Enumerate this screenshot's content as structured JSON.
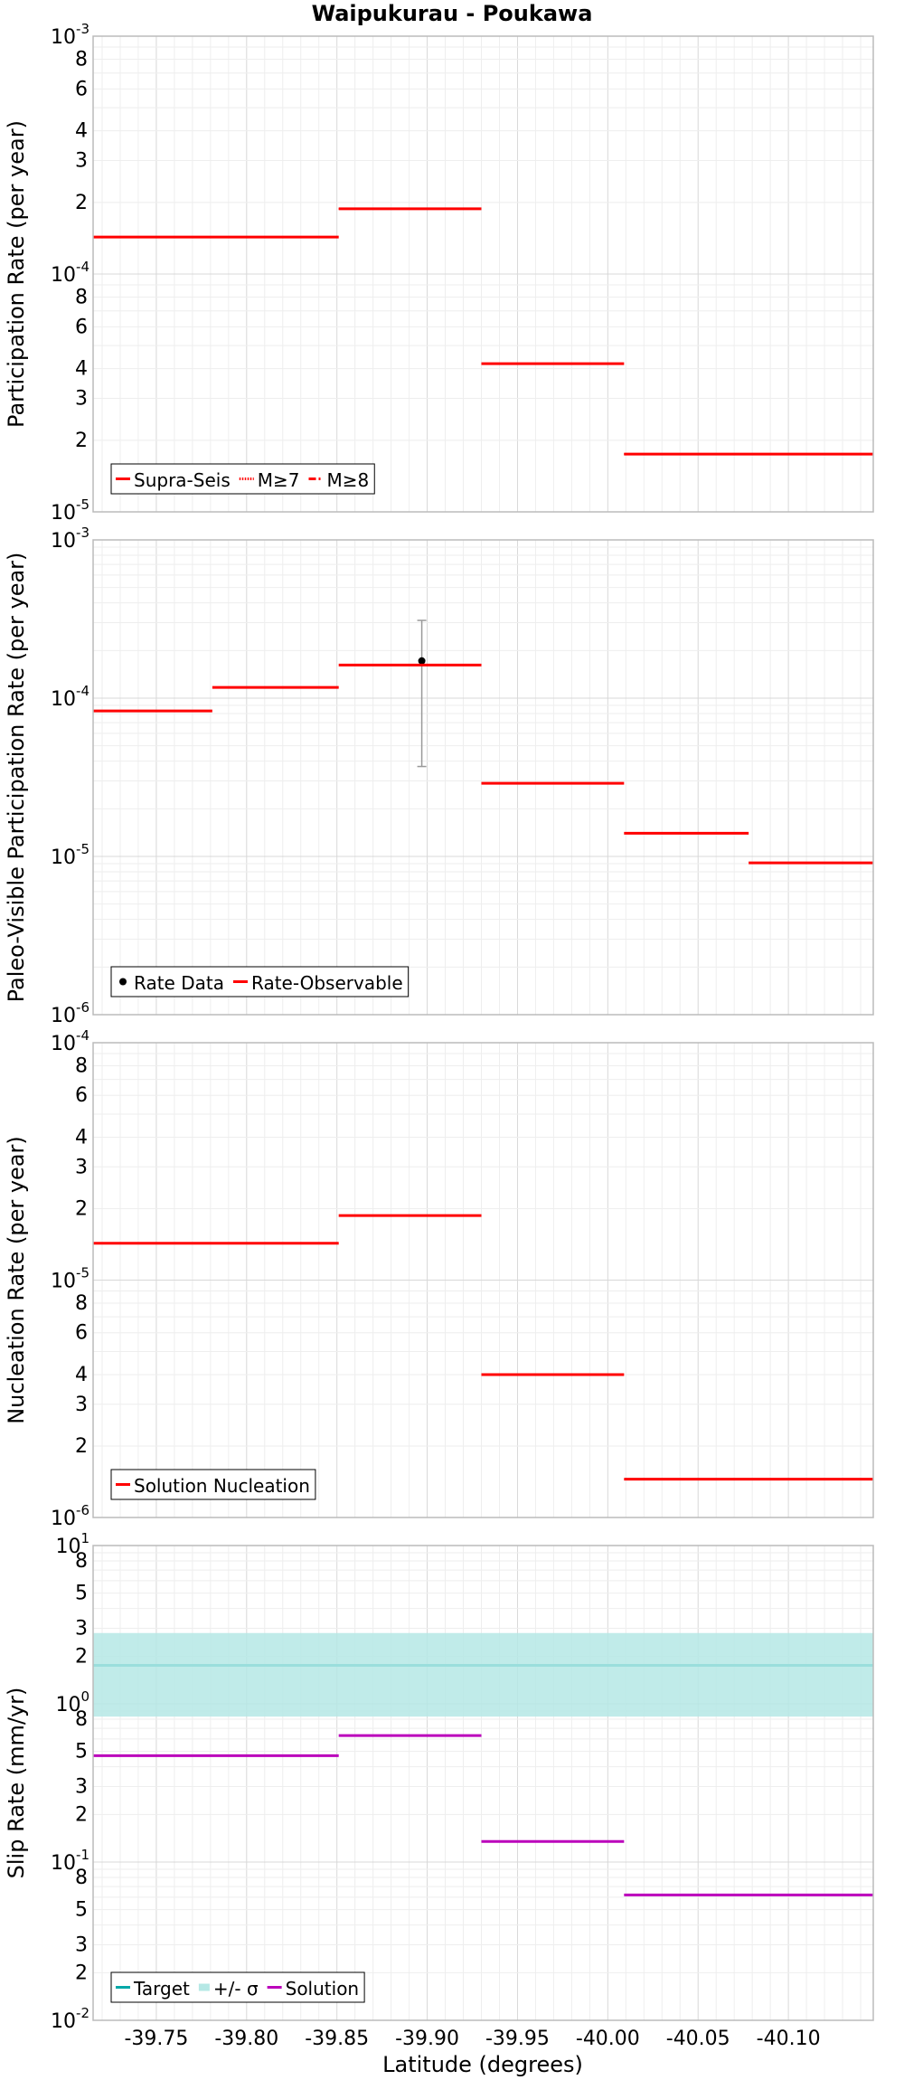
{
  "figure": {
    "title": "Waipukurau - Poukawa",
    "xlabel": "Latitude (degrees)"
  },
  "chart_data": [
    {
      "type": "line",
      "title": "Waipukurau - Poukawa",
      "ylabel": "Participation Rate (per year)",
      "xlabel": "Latitude (degrees)",
      "xscale": "linear, reversed",
      "yscale": "log",
      "xlim": [
        -39.715,
        -40.147
      ],
      "ylim": [
        1e-05,
        0.001
      ],
      "x_ticks": [
        "-39.75",
        "-39.80",
        "-39.85",
        "-39.90",
        "-39.95",
        "-40.00",
        "-40.05",
        "-40.10"
      ],
      "y_major_ticks": [
        {
          "value": 1e-05,
          "base": "10",
          "exp": "-5"
        },
        {
          "value": 0.0001,
          "base": "10",
          "exp": "-4"
        },
        {
          "value": 0.001,
          "base": "10",
          "exp": "-3"
        }
      ],
      "y_minor_labels": [
        "2",
        "3",
        "4",
        "6",
        "8"
      ],
      "grid": true,
      "legend_position": "bottom-left",
      "series": [
        {
          "name": "Supra-Seis",
          "color": "#ff0000",
          "style": "solid",
          "segments": [
            [
              -39.715,
              -39.851,
              0.000143
            ],
            [
              -39.851,
              -39.93,
              0.000188
            ],
            [
              -39.93,
              -40.009,
              4.2e-05
            ],
            [
              -40.009,
              -40.147,
              1.75e-05
            ]
          ]
        },
        {
          "name": "M≥7",
          "color": "#ff0000",
          "style": "dotted",
          "segments": [
            [
              -39.715,
              -39.851,
              0.000143
            ],
            [
              -39.851,
              -39.93,
              0.000188
            ],
            [
              -39.93,
              -40.009,
              4.2e-05
            ],
            [
              -40.009,
              -40.147,
              1.75e-05
            ]
          ]
        },
        {
          "name": "M≥8",
          "color": "#ff0000",
          "style": "dashdot",
          "segments": []
        }
      ]
    },
    {
      "type": "line",
      "ylabel": "Paleo-Visible Participation Rate (per year)",
      "xscale": "linear, reversed",
      "yscale": "log",
      "xlim": [
        -39.715,
        -40.147
      ],
      "ylim": [
        1e-06,
        0.001
      ],
      "y_major_ticks": [
        {
          "value": 1e-06,
          "base": "10",
          "exp": "-6"
        },
        {
          "value": 1e-05,
          "base": "10",
          "exp": "-5"
        },
        {
          "value": 0.0001,
          "base": "10",
          "exp": "-4"
        },
        {
          "value": 0.001,
          "base": "10",
          "exp": "-3"
        }
      ],
      "y_minor_labels": [],
      "grid": true,
      "legend_position": "bottom-left",
      "series": [
        {
          "name": "Rate Data",
          "color": "#000000",
          "kind": "points",
          "points": [
            {
              "x": -39.897,
              "y": 0.000172,
              "ylo": 3.7e-05,
              "yhi": 0.00031
            }
          ]
        },
        {
          "name": "Rate-Observable",
          "color": "#ff0000",
          "style": "solid",
          "segments": [
            [
              -39.715,
              -39.781,
              8.3e-05
            ],
            [
              -39.781,
              -39.851,
              0.000117
            ],
            [
              -39.851,
              -39.93,
              0.000162
            ],
            [
              -39.93,
              -40.009,
              2.9e-05
            ],
            [
              -40.009,
              -40.078,
              1.4e-05
            ],
            [
              -40.078,
              -40.147,
              9.1e-06
            ]
          ]
        }
      ]
    },
    {
      "type": "line",
      "ylabel": "Nucleation Rate (per year)",
      "xscale": "linear, reversed",
      "yscale": "log",
      "xlim": [
        -39.715,
        -40.147
      ],
      "ylim": [
        1e-06,
        0.0001
      ],
      "y_major_ticks": [
        {
          "value": 1e-06,
          "base": "10",
          "exp": "-6"
        },
        {
          "value": 1e-05,
          "base": "10",
          "exp": "-5"
        },
        {
          "value": 0.0001,
          "base": "10",
          "exp": "-4"
        }
      ],
      "y_minor_labels": [
        "2",
        "3",
        "4",
        "6",
        "8"
      ],
      "grid": true,
      "legend_position": "bottom-left",
      "series": [
        {
          "name": "Solution Nucleation",
          "color": "#ff0000",
          "style": "solid",
          "segments": [
            [
              -39.715,
              -39.851,
              1.43e-05
            ],
            [
              -39.851,
              -39.93,
              1.87e-05
            ],
            [
              -39.93,
              -40.009,
              4e-06
            ],
            [
              -40.009,
              -40.147,
              1.45e-06
            ]
          ]
        }
      ]
    },
    {
      "type": "line",
      "ylabel": "Slip Rate (mm/yr)",
      "xlabel": "Latitude (degrees)",
      "xscale": "linear, reversed",
      "yscale": "log",
      "xlim": [
        -39.715,
        -40.147
      ],
      "ylim": [
        0.01,
        10
      ],
      "y_major_ticks": [
        {
          "value": 0.01,
          "base": "10",
          "exp": "-2"
        },
        {
          "value": 0.1,
          "base": "10",
          "exp": "-1"
        },
        {
          "value": 1,
          "base": "10",
          "exp": "0"
        },
        {
          "value": 10,
          "base": "10",
          "exp": "1"
        }
      ],
      "y_minor_labels": [
        "2",
        "3",
        "5",
        "8"
      ],
      "grid": true,
      "legend_position": "bottom-left",
      "series": [
        {
          "name": "Target",
          "color": "#00a8a8",
          "style": "solid",
          "segments": [
            [
              -39.715,
              -40.147,
              1.75
            ]
          ]
        },
        {
          "name": "+/- σ",
          "color": "#b5e8e5",
          "kind": "band",
          "band": [
            -39.715,
            -40.147,
            0.83,
            2.8
          ]
        },
        {
          "name": "Solution",
          "color": "#bb00bb",
          "style": "solid",
          "segments": [
            [
              -39.715,
              -39.851,
              0.47
            ],
            [
              -39.851,
              -39.93,
              0.63
            ],
            [
              -39.93,
              -40.009,
              0.135
            ],
            [
              -40.009,
              -40.147,
              0.062
            ]
          ]
        }
      ]
    }
  ]
}
